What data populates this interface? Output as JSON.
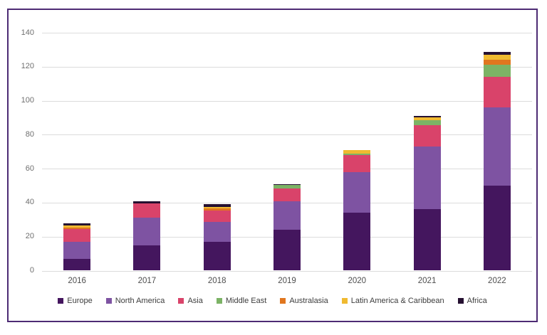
{
  "chart": {
    "frame_border_color": "#4d2b74",
    "background_color": "#ffffff",
    "gridline_color": "#dcdcdc",
    "ytick_color": "#6f6f6f",
    "xlabel_color": "#4d4d4d",
    "legend_text_color": "#3c3c3c"
  },
  "chart_data": {
    "type": "bar",
    "stacked": true,
    "title": "",
    "xlabel": "",
    "ylabel": "",
    "categories": [
      "2016",
      "2017",
      "2018",
      "2019",
      "2020",
      "2021",
      "2022"
    ],
    "series": [
      {
        "name": "Europe",
        "color": "#44165e",
        "values": [
          7,
          15,
          17,
          24,
          34,
          36,
          50
        ]
      },
      {
        "name": "North America",
        "color": "#7e53a2",
        "values": [
          10,
          16,
          11.5,
          17,
          24,
          37,
          46
        ]
      },
      {
        "name": "Asia",
        "color": "#d9436a",
        "values": [
          7.5,
          8.5,
          7,
          7.5,
          10,
          12.5,
          18
        ]
      },
      {
        "name": "Middle East",
        "color": "#7cb365",
        "values": [
          0,
          0,
          0,
          2,
          1,
          3,
          7
        ]
      },
      {
        "name": "Australasia",
        "color": "#e0761f",
        "values": [
          1,
          0,
          1,
          0,
          0,
          0,
          3
        ]
      },
      {
        "name": "Latin America & Caribbean",
        "color": "#f0ba30",
        "values": [
          1,
          0,
          1,
          0,
          2,
          1.5,
          3
        ]
      },
      {
        "name": "Africa",
        "color": "#251031",
        "values": [
          1.5,
          1.5,
          1.5,
          0.5,
          0,
          1,
          1.5
        ]
      }
    ],
    "totals": [
      28,
      41,
      39,
      51,
      71,
      91,
      128.5
    ],
    "ylim": [
      0,
      140
    ],
    "ytick_step": 20,
    "yticks": [
      "0",
      "20",
      "40",
      "60",
      "80",
      "100",
      "120",
      "140"
    ],
    "grid": true,
    "legend_position": "bottom"
  }
}
